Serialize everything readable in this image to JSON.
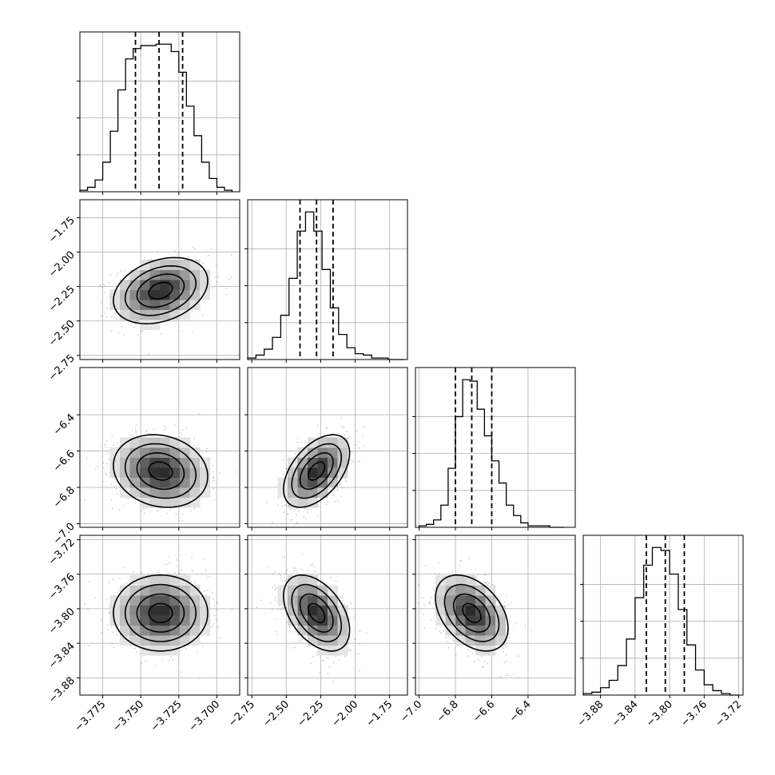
{
  "chart_data": {
    "type": "corner",
    "title": "",
    "grid": true,
    "parameters": [
      {
        "range": [
          -3.79,
          -3.685
        ],
        "ticks": [
          "−3.775",
          "−3.750",
          "−3.725",
          "−3.700"
        ],
        "tick_values": [
          -3.775,
          -3.75,
          -3.725,
          -3.7
        ],
        "hist_x": [
          -3.7875,
          -3.7825,
          -3.7775,
          -3.7725,
          -3.7675,
          -3.7625,
          -3.7575,
          -3.7525,
          -3.7475,
          -3.7425,
          -3.7375,
          -3.7325,
          -3.7275,
          -3.7225,
          -3.7175,
          -3.7125,
          -3.7075,
          -3.7025,
          -3.6975,
          -3.6925
        ],
        "hist_counts": [
          0.01,
          0.03,
          0.08,
          0.2,
          0.41,
          0.69,
          0.9,
          0.97,
          0.99,
          0.99,
          1.0,
          1.0,
          0.95,
          0.81,
          0.58,
          0.38,
          0.2,
          0.09,
          0.03,
          0.01
        ],
        "quantiles": [
          -3.7535,
          -3.738,
          -3.7225
        ],
        "mean": -3.738,
        "sd": 0.0155
      },
      {
        "range": [
          -2.78,
          -1.62
        ],
        "ticks": [
          "−2.75",
          "−2.50",
          "−2.25",
          "−2.00",
          "−1.75"
        ],
        "tick_values": [
          -2.75,
          -2.5,
          -2.25,
          -2.0,
          -1.75
        ],
        "hist_x": [
          -2.75,
          -2.69,
          -2.63,
          -2.57,
          -2.51,
          -2.45,
          -2.39,
          -2.33,
          -2.27,
          -2.21,
          -2.15,
          -2.09,
          -2.03,
          -1.97,
          -1.91,
          -1.85,
          -1.79,
          -1.73,
          -1.67
        ],
        "hist_counts": [
          0.01,
          0.03,
          0.07,
          0.15,
          0.3,
          0.55,
          0.87,
          1.0,
          0.87,
          0.61,
          0.35,
          0.17,
          0.08,
          0.04,
          0.03,
          0.01,
          0.01,
          0.0,
          0.0
        ],
        "quantiles": [
          -2.4,
          -2.28,
          -2.16
        ],
        "mean": -2.28,
        "sd": 0.12
      },
      {
        "range": [
          -7.02,
          -6.14
        ],
        "ticks": [
          "−7.0",
          "−6.8",
          "−6.6",
          "−6.4"
        ],
        "tick_values": [
          -7.0,
          -6.8,
          -6.6,
          -6.4
        ],
        "hist_x": [
          -6.98,
          -6.94,
          -6.9,
          -6.86,
          -6.82,
          -6.78,
          -6.74,
          -6.7,
          -6.66,
          -6.62,
          -6.58,
          -6.54,
          -6.5,
          -6.46,
          -6.42,
          -6.38,
          -6.34,
          -6.3,
          -6.26,
          -6.22
        ],
        "hist_counts": [
          0.01,
          0.02,
          0.05,
          0.15,
          0.4,
          0.75,
          1.0,
          0.99,
          0.8,
          0.62,
          0.45,
          0.3,
          0.15,
          0.08,
          0.03,
          0.01,
          0.01,
          0.01,
          0.0,
          0.0
        ],
        "quantiles": [
          -6.8,
          -6.71,
          -6.6
        ],
        "mean": -6.71,
        "sd": 0.1
      },
      {
        "range": [
          -3.9,
          -3.715
        ],
        "ticks": [
          "−3.88",
          "−3.84",
          "−3.80",
          "−3.76",
          "−3.72"
        ],
        "tick_values": [
          -3.88,
          -3.84,
          -3.8,
          -3.76,
          -3.72
        ],
        "hist_x": [
          -3.895,
          -3.885,
          -3.875,
          -3.865,
          -3.855,
          -3.845,
          -3.835,
          -3.825,
          -3.815,
          -3.805,
          -3.795,
          -3.785,
          -3.775,
          -3.765,
          -3.755,
          -3.745,
          -3.735,
          -3.725
        ],
        "hist_counts": [
          0.01,
          0.02,
          0.05,
          0.1,
          0.2,
          0.38,
          0.66,
          0.88,
          1.0,
          0.98,
          0.82,
          0.58,
          0.34,
          0.17,
          0.07,
          0.03,
          0.01,
          0.0
        ],
        "quantiles": [
          -3.827,
          -3.805,
          -3.783
        ],
        "mean": -3.805,
        "sd": 0.022
      }
    ],
    "panels_2d": [
      {
        "row": 1,
        "col": 0,
        "center": [
          -3.737,
          -2.28
        ],
        "spread": [
          0.0155,
          0.12
        ],
        "rho": 0.3
      },
      {
        "row": 2,
        "col": 0,
        "center": [
          -3.737,
          -6.71
        ],
        "spread": [
          0.0155,
          0.1
        ],
        "rho": -0.15
      },
      {
        "row": 2,
        "col": 1,
        "center": [
          -2.28,
          -6.71
        ],
        "spread": [
          0.12,
          0.1
        ],
        "rho": 0.5
      },
      {
        "row": 3,
        "col": 0,
        "center": [
          -3.737,
          -3.805
        ],
        "spread": [
          0.0155,
          0.022
        ],
        "rho": 0.0
      },
      {
        "row": 3,
        "col": 1,
        "center": [
          -2.28,
          -3.805
        ],
        "spread": [
          0.12,
          0.022
        ],
        "rho": -0.45
      },
      {
        "row": 3,
        "col": 2,
        "center": [
          -6.71,
          -3.805
        ],
        "spread": [
          0.1,
          0.022
        ],
        "rho": -0.4
      }
    ],
    "contour_sigmas": [
      0.5,
      1.0,
      1.5,
      2.0
    ]
  }
}
